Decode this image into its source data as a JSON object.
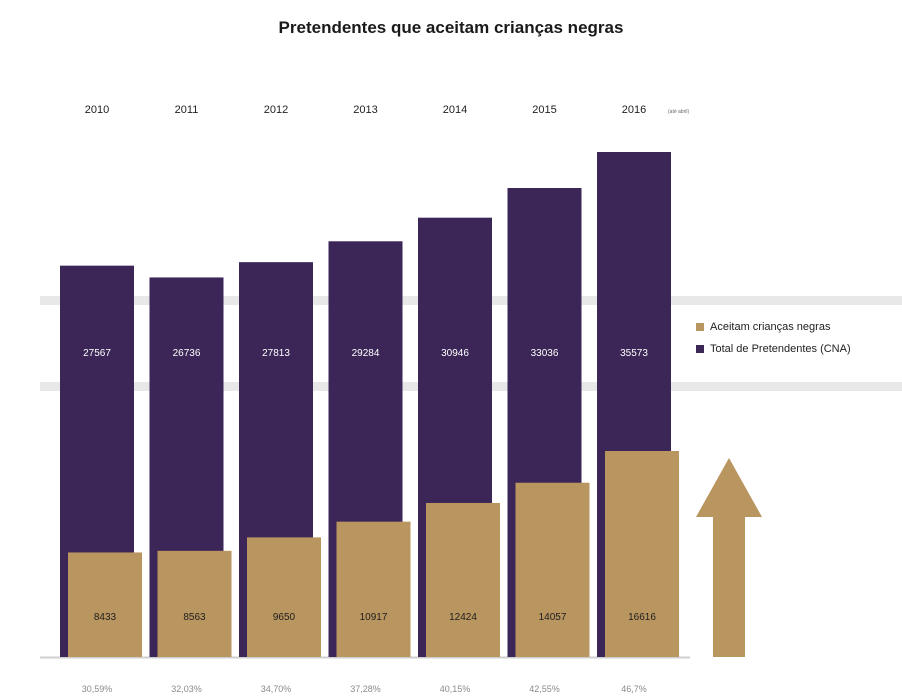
{
  "title": "Pretendentes que aceitam crianças negras",
  "colors": {
    "total": "#3b2657",
    "accept": "#b99560",
    "arrow": "#b99560",
    "band": "#e8e8e8",
    "axis": "#cfcfcf",
    "value_text": "#ffffff",
    "pct_text": "#8a8a8a"
  },
  "legend": [
    {
      "label": "Aceitam crianças negras",
      "series": "accept"
    },
    {
      "label": "Total de Pretendentes (CNA)",
      "series": "total"
    }
  ],
  "chart_data": {
    "type": "bar",
    "categories": [
      "2010",
      "2011",
      "2012",
      "2013",
      "2014",
      "2015",
      "2016"
    ],
    "category_notes": [
      "",
      "",
      "",
      "",
      "",
      "",
      "(até abril)"
    ],
    "series": [
      {
        "name": "Total de Pretendentes (CNA)",
        "key": "total",
        "values": [
          27567,
          26736,
          27813,
          29284,
          30946,
          33036,
          35573
        ]
      },
      {
        "name": "Aceitam crianças negras",
        "key": "accept",
        "values": [
          8433,
          8563,
          9650,
          10917,
          12424,
          14057,
          16616
        ]
      }
    ],
    "percentages": [
      "30,59%",
      "32,03%",
      "34,70%",
      "37,28%",
      "40,15%",
      "42,55%",
      "46,7%"
    ],
    "xlabel": "",
    "ylabel": "",
    "grid": false,
    "legend_position": "right"
  }
}
